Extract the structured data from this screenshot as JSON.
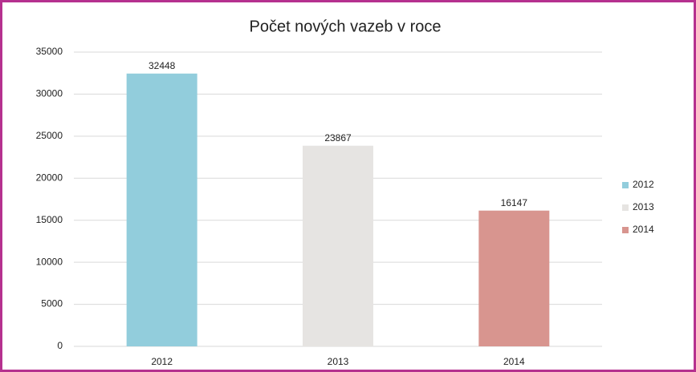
{
  "chart_data": {
    "type": "bar",
    "title": "Počet nových vazeb v roce",
    "categories": [
      "2012",
      "2013",
      "2014"
    ],
    "values": [
      32448,
      23867,
      16147
    ],
    "colors": [
      "#92cddc",
      "#e6e4e2",
      "#d8958f"
    ],
    "ylim": [
      0,
      35000
    ],
    "yticks": [
      0,
      5000,
      10000,
      15000,
      20000,
      25000,
      30000,
      35000
    ],
    "grid": true,
    "legend": "right"
  }
}
